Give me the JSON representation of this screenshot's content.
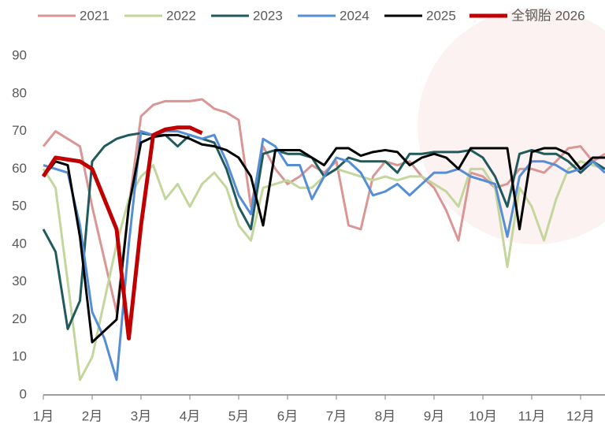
{
  "chart_data": {
    "type": "line",
    "x": [
      1,
      1.25,
      1.5,
      1.75,
      2,
      2.25,
      2.5,
      2.75,
      3,
      3.25,
      3.5,
      3.75,
      4,
      4.25,
      4.5,
      4.75,
      5,
      5.25,
      5.5,
      5.75,
      6,
      6.25,
      6.5,
      6.75,
      7,
      7.25,
      7.5,
      7.75,
      8,
      8.25,
      8.5,
      8.75,
      9,
      9.25,
      9.5,
      9.75,
      10,
      10.25,
      10.5,
      10.75,
      11,
      11.25,
      11.5,
      11.75,
      12,
      12.25,
      12.5
    ],
    "xlim": [
      1,
      12.5
    ],
    "xticks": [
      {
        "value": 1,
        "label": "1月"
      },
      {
        "value": 2,
        "label": "2月"
      },
      {
        "value": 3,
        "label": "3月"
      },
      {
        "value": 4,
        "label": "4月"
      },
      {
        "value": 5,
        "label": "5月"
      },
      {
        "value": 6,
        "label": "6月"
      },
      {
        "value": 7,
        "label": "7月"
      },
      {
        "value": 8,
        "label": "8月"
      },
      {
        "value": 9,
        "label": "9月"
      },
      {
        "value": 10,
        "label": "10月"
      },
      {
        "value": 11,
        "label": "11月"
      },
      {
        "value": 12,
        "label": "12月"
      }
    ],
    "ylim": [
      0,
      90
    ],
    "yticks": [
      0,
      10,
      20,
      30,
      40,
      50,
      60,
      70,
      80,
      90
    ],
    "grid": false,
    "legend": "top",
    "series": [
      {
        "name": "2021",
        "color": "#d99694",
        "width": 3,
        "values": [
          66,
          70,
          68,
          66,
          50,
          36,
          22,
          50,
          74,
          77,
          78,
          78,
          78,
          78.5,
          76,
          75,
          73,
          50,
          66,
          60,
          56,
          58,
          61,
          59,
          62,
          45,
          44,
          58,
          62,
          61,
          62,
          58,
          55,
          49,
          41,
          59,
          58,
          55,
          56,
          60,
          60,
          59,
          62,
          65.5,
          66,
          62,
          64
        ]
      },
      {
        "name": "2022",
        "color": "#c3d69b",
        "width": 3,
        "values": [
          60,
          55,
          30,
          4,
          10,
          25,
          40,
          52,
          58,
          61,
          52,
          56,
          50,
          56,
          59,
          55,
          45,
          41,
          55,
          56,
          57,
          55,
          55,
          58,
          60,
          59,
          58,
          57,
          58,
          57,
          58,
          58,
          56,
          54,
          50,
          60,
          60,
          55,
          34,
          55,
          50,
          41,
          52,
          60,
          62,
          61,
          60
        ]
      },
      {
        "name": "2023",
        "color": "#215a5c",
        "width": 3,
        "values": [
          44,
          38,
          17.5,
          25,
          62,
          66,
          68,
          69,
          69.5,
          69,
          69,
          66,
          69,
          68,
          67,
          60,
          50,
          44,
          64,
          65,
          64,
          64,
          63,
          58,
          60,
          63,
          62,
          62,
          62,
          59,
          64,
          64,
          64.5,
          64.5,
          64.5,
          65,
          63,
          58,
          50,
          64,
          65,
          64,
          64,
          62,
          59,
          62,
          60
        ]
      },
      {
        "name": "2024",
        "color": "#558ed5",
        "width": 3,
        "values": [
          61,
          60,
          59,
          45,
          22,
          15,
          4,
          40,
          70,
          69,
          70,
          70,
          69,
          68,
          69,
          62,
          53,
          48,
          68,
          66,
          61,
          61,
          52,
          58,
          63,
          62,
          59,
          53,
          54,
          56,
          53,
          56,
          59,
          59,
          60,
          58,
          57,
          56,
          42,
          58,
          62,
          62,
          61,
          59,
          60,
          62,
          59
        ]
      },
      {
        "name": "2025",
        "color": "#000000",
        "width": 3,
        "values": [
          58,
          62,
          61,
          42,
          14,
          17,
          20,
          50,
          67,
          68.5,
          69,
          69,
          68,
          66.5,
          66,
          65,
          63,
          58,
          45,
          65,
          65,
          65,
          63,
          61,
          65.5,
          65.5,
          63.5,
          64.5,
          65,
          64.5,
          61,
          63,
          64,
          63,
          60,
          65.5,
          65.5,
          65.5,
          65.5,
          44,
          64.5,
          65.5,
          65.5,
          64,
          60,
          63,
          63
        ]
      },
      {
        "name": "全钢胎 2026",
        "color": "#c00000",
        "width": 5,
        "values": [
          58,
          63,
          62.5,
          62,
          60,
          52,
          44,
          15,
          45,
          69,
          70.5,
          71,
          71,
          69.5,
          null,
          null,
          null,
          null,
          null,
          null,
          null,
          null,
          null,
          null,
          null,
          null,
          null,
          null,
          null,
          null,
          null,
          null,
          null,
          null,
          null,
          null,
          null,
          null,
          null,
          null,
          null,
          null,
          null,
          null,
          null,
          null,
          null
        ]
      }
    ]
  }
}
